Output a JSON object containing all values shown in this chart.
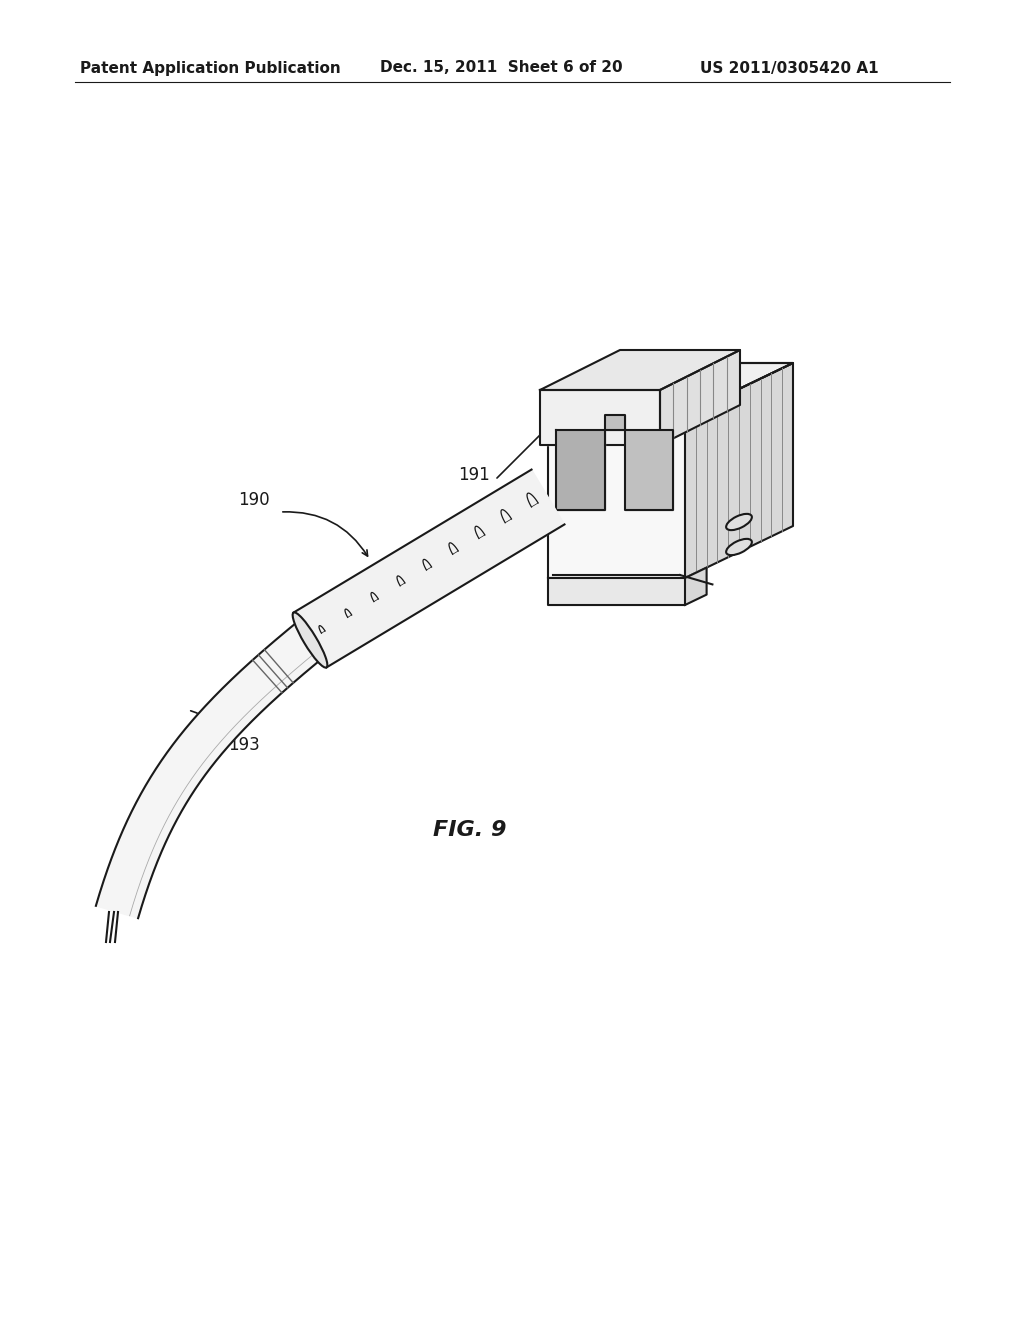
{
  "bg_color": "#ffffff",
  "header_left": "Patent Application Publication",
  "header_mid": "Dec. 15, 2011  Sheet 6 of 20",
  "header_right": "US 2011/0305420 A1",
  "fig_caption": "FIG. 9",
  "line_color": "#1a1a1a",
  "header_fontsize": 11,
  "label_fontsize": 12,
  "caption_fontsize": 16
}
